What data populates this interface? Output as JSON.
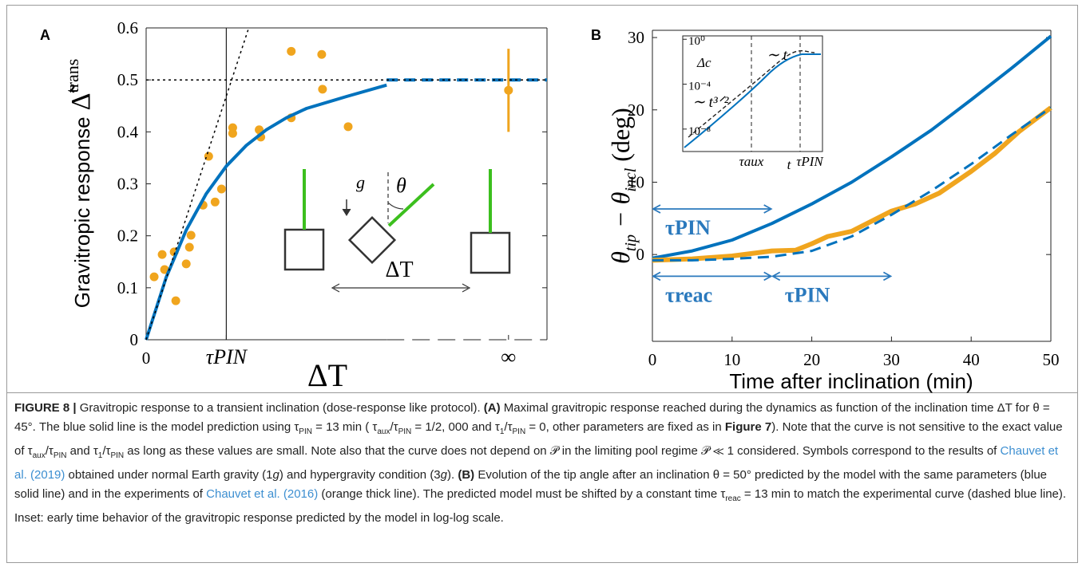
{
  "chart_data": [
    {
      "type": "scatter",
      "panel": "A",
      "y_label": "Gravitropic response",
      "y_label_symbol": "Δ̃",
      "y_label_sup": "trans",
      "x_label": "ΔT",
      "xlim": [
        0,
        5
      ],
      "ylim": [
        0,
        0.6
      ],
      "xticks": [
        0,
        {
          "value": 1,
          "label": "τPIN"
        },
        {
          "value": 4.52,
          "label": "∞"
        }
      ],
      "yticks": [
        0,
        0.1,
        0.2,
        0.3,
        0.4,
        0.5,
        0.6
      ],
      "axis_break": 3,
      "vline": 1,
      "series": [
        {
          "style": "markers",
          "color": "#f0a51e",
          "x": [
            0.1,
            0.2,
            0.23,
            0.35,
            0.37,
            0.5,
            0.54,
            0.56,
            0.71,
            0.78,
            0.86,
            0.94,
            1.08,
            1.08,
            1.41,
            1.43,
            1.81,
            1.81,
            2.19,
            2.2,
            2.52
          ],
          "values": [
            0.121,
            0.164,
            0.135,
            0.169,
            0.075,
            0.146,
            0.178,
            0.201,
            0.259,
            0.353,
            0.265,
            0.29,
            0.408,
            0.397,
            0.404,
            0.39,
            0.427,
            0.555,
            0.549,
            0.482,
            0.41
          ]
        },
        {
          "style": "errorbar",
          "color": "#f0a51e",
          "x": [
            4.52
          ],
          "values": [
            0.48
          ],
          "errors": [
            0.08
          ]
        },
        {
          "style": "solid",
          "color": "#0072bd",
          "width": 4,
          "x": [
            0,
            0.25,
            0.5,
            0.75,
            1,
            1.25,
            1.5,
            1.75,
            2,
            2.5,
            3
          ],
          "values": [
            0,
            0.12,
            0.211,
            0.281,
            0.334,
            0.374,
            0.404,
            0.427,
            0.445,
            0.468,
            0.49
          ]
        },
        {
          "style": "dashed",
          "color": "#0072bd",
          "width": 4,
          "x": [
            3,
            5
          ],
          "values": [
            0.5,
            0.5
          ]
        },
        {
          "style": "dotted",
          "color": "#000000",
          "width": 1.5,
          "x": [
            0,
            1.28
          ],
          "values": [
            0,
            0.6
          ]
        },
        {
          "style": "dotted",
          "color": "#000000",
          "width": 1.5,
          "x": [
            0,
            5
          ],
          "values": [
            0.5,
            0.5
          ]
        }
      ],
      "annotations": [
        "g",
        "θ",
        "ΔT"
      ]
    },
    {
      "type": "line",
      "panel": "B",
      "y_label": [
        "θ",
        "tip",
        " − θ",
        "incl",
        " (deg)"
      ],
      "x_label": "Time after inclination (min)",
      "xlim": [
        0,
        50
      ],
      "ylim": [
        -12,
        31
      ],
      "xticks": [
        0,
        10,
        20,
        30,
        40,
        50
      ],
      "yticks": [
        0,
        10,
        20,
        30
      ],
      "series": [
        {
          "style": "solid",
          "color": "#0072bd",
          "width": 4,
          "x": [
            0,
            5,
            10,
            15,
            20,
            25,
            30,
            35,
            40,
            45,
            50
          ],
          "values": [
            -0.5,
            0.5,
            2.0,
            4.3,
            7.0,
            10,
            13.5,
            17.2,
            21.4,
            25.7,
            30.2
          ]
        },
        {
          "style": "solid",
          "color": "#f0a51e",
          "width": 6,
          "x": [
            0,
            5,
            10,
            15,
            18,
            20,
            22,
            25,
            30,
            33,
            36,
            40,
            43,
            46,
            50
          ],
          "values": [
            -0.8,
            -0.6,
            -0.2,
            0.5,
            0.6,
            1.5,
            2.5,
            3.2,
            6,
            7,
            8.5,
            11.5,
            14,
            17,
            20.3
          ]
        },
        {
          "style": "dashed",
          "color": "#0072bd",
          "width": 3,
          "x": [
            0,
            5,
            10,
            15,
            20,
            25,
            30,
            35,
            40,
            45,
            50
          ],
          "values": [
            -0.8,
            -0.8,
            -0.6,
            -0.3,
            0.5,
            2.5,
            5.5,
            8.8,
            12.5,
            16.5,
            20.3
          ]
        }
      ],
      "annotations": [
        {
          "label": "τPIN",
          "x_start": 0,
          "x_end": 15,
          "y": 6.3
        },
        {
          "label": "τreac",
          "x_start": 0,
          "x_end": 15,
          "y": -3
        },
        {
          "label": "τPIN",
          "x_start": 15,
          "x_end": 30,
          "y": -3
        }
      ],
      "inset": {
        "log_y": true,
        "ylim": [
          1e-10,
          2
        ],
        "yticks": [
          {
            "value": 1,
            "label": "10⁰"
          },
          {
            "value": 0.0001,
            "label": "10⁻⁴"
          },
          {
            "value": 1e-08,
            "label": "10⁻⁸"
          }
        ],
        "y_label": "Δc",
        "x_labels": [
          "τaux",
          "t",
          "τPIN"
        ],
        "annotations": [
          "∼ t³ᐟ²",
          "∼ t"
        ]
      }
    }
  ],
  "caption": {
    "segments": [
      {
        "text": "FIGURE 8 |",
        "style": "b"
      },
      {
        "text": " Gravitropic response to a transient inclination (dose-response like protocol). ",
        "style": ""
      },
      {
        "text": "(A)",
        "style": "b"
      },
      {
        "text": " Maximal gravitropic response reached during the dynamics as function of the inclination time ΔT for θ = 45°. The blue solid line is the model prediction using τ",
        "style": ""
      },
      {
        "text": "PIN",
        "style": "sub"
      },
      {
        "text": " = 13 min ( τ",
        "style": ""
      },
      {
        "text": "aux",
        "style": "sub"
      },
      {
        "text": "/τ",
        "style": ""
      },
      {
        "text": "PIN",
        "style": "sub"
      },
      {
        "text": " = 1/2, 000 and τ",
        "style": ""
      },
      {
        "text": "1",
        "style": "sub"
      },
      {
        "text": "/τ",
        "style": ""
      },
      {
        "text": "PIN",
        "style": "sub"
      },
      {
        "text": " = 0, other parameters are fixed as in ",
        "style": ""
      },
      {
        "text": "Figure 7",
        "style": "b"
      },
      {
        "text": ").  Note that the curve is not sensitive to the exact value of τ",
        "style": ""
      },
      {
        "text": "aux",
        "style": "sub"
      },
      {
        "text": "/τ",
        "style": ""
      },
      {
        "text": "PIN",
        "style": "sub"
      },
      {
        "text": " and τ",
        "style": ""
      },
      {
        "text": "1",
        "style": "sub"
      },
      {
        "text": "/τ",
        "style": ""
      },
      {
        "text": "PIN",
        "style": "sub"
      },
      {
        "text": " as long as these values are small. Note also that the curve does not depend on 𝒫 in the limiting pool regime 𝒫 ≪ 1 considered. Symbols correspond to the results of ",
        "style": ""
      },
      {
        "text": "Chauvet et al. (2019)",
        "style": "link"
      },
      {
        "text": " obtained under  normal Earth gravity (1",
        "style": ""
      },
      {
        "text": "g",
        "style": "i"
      },
      {
        "text": ") and hypergravity condition (3",
        "style": ""
      },
      {
        "text": "g",
        "style": "i"
      },
      {
        "text": "). ",
        "style": ""
      },
      {
        "text": "(B)",
        "style": "b"
      },
      {
        "text": " Evolution of the tip angle after an inclination θ = 50° predicted by the model with the same parameters (blue solid line) and in the experiments of ",
        "style": ""
      },
      {
        "text": "Chauvet et al. (2016)",
        "style": "link"
      },
      {
        "text": " (orange thick line). The predicted model must be shifted by a constant time τ",
        "style": ""
      },
      {
        "text": "reac",
        "style": "sub"
      },
      {
        "text": " = 13 min to match the experimental curve (dashed blue line). Inset: early time behavior of the gravitropic response predicted by the model in log-log scale.",
        "style": ""
      }
    ]
  }
}
